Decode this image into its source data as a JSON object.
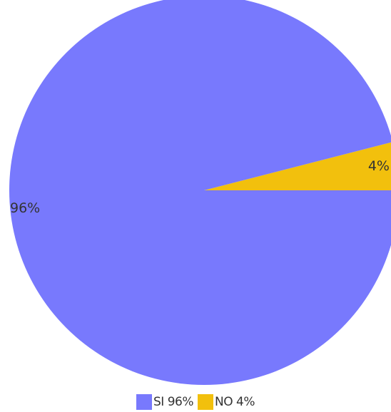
{
  "chart_data": {
    "type": "pie",
    "title": "",
    "slices": [
      {
        "name": "NO",
        "value": 4,
        "label": "4%",
        "legend_label": "NO 4%",
        "color": "#f2c00d"
      },
      {
        "name": "SI",
        "value": 96,
        "label": "96%",
        "legend_label": "SI 96%",
        "color": "#7879fd"
      }
    ],
    "legend": {
      "position": "bottom",
      "items": [
        {
          "label": "SI 96%",
          "color": "#7879fd"
        },
        {
          "label": "NO 4%",
          "color": "#f2c00d"
        }
      ]
    }
  }
}
